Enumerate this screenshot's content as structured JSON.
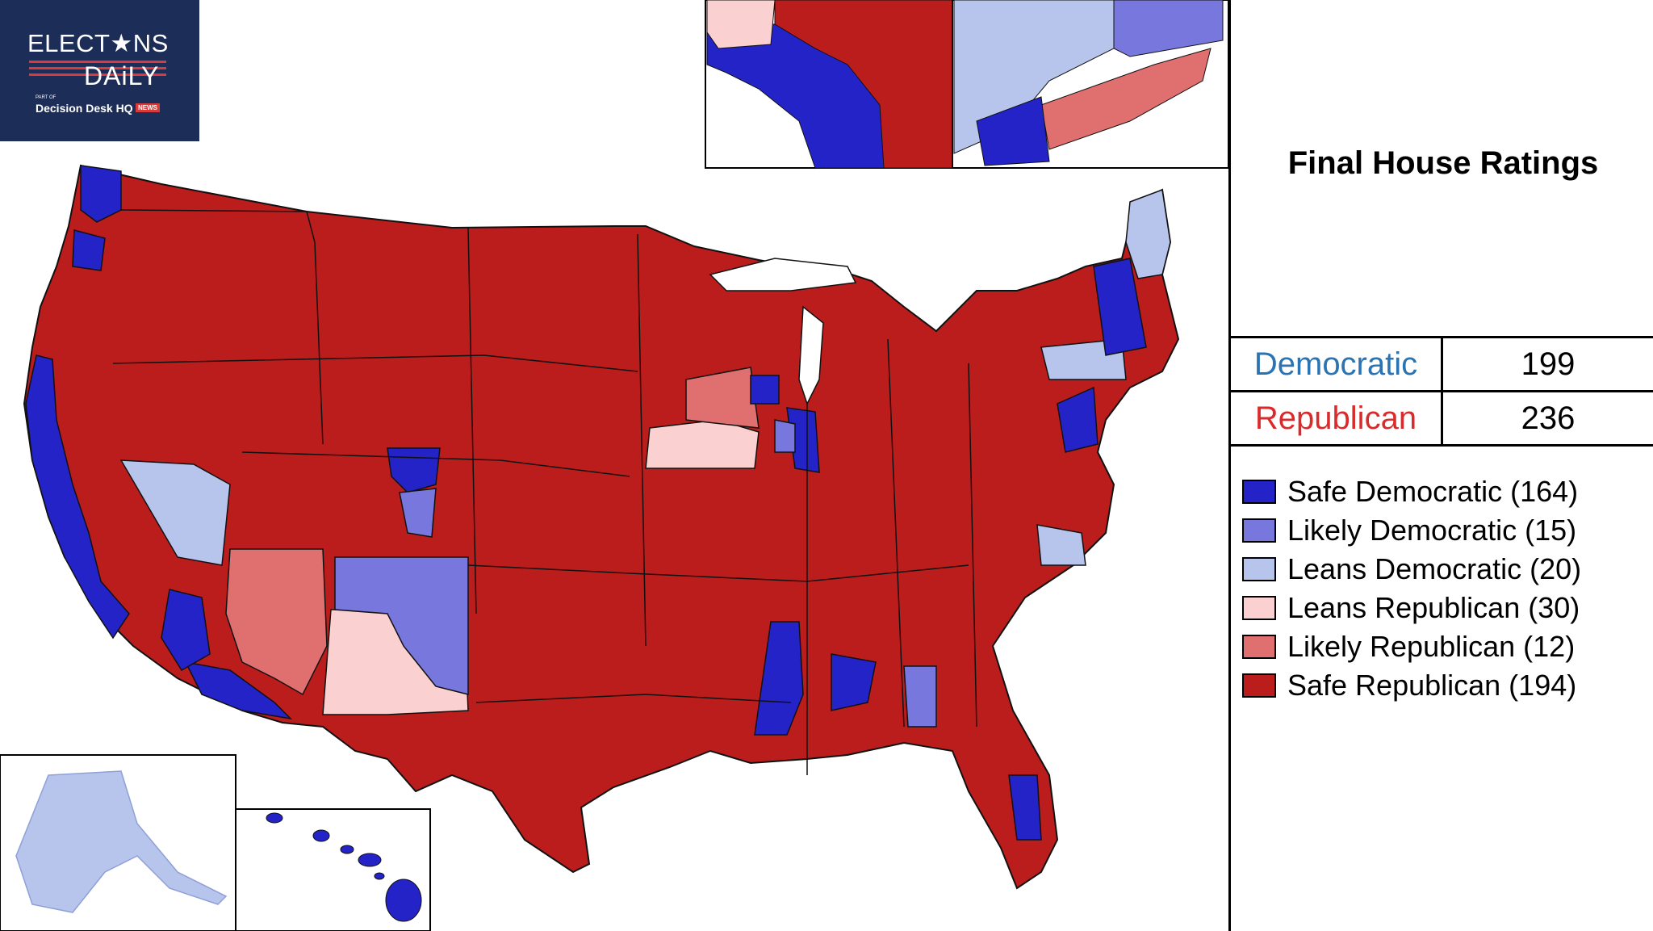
{
  "logo": {
    "line1": "ELECT★NS",
    "line2": "DAiLY",
    "sub": "PART OF",
    "brand": "Decision Desk HQ",
    "badge": "NEWS"
  },
  "title": "Final House Ratings",
  "tally": [
    {
      "party": "Democratic",
      "seats": "199",
      "color": "#2a74b4"
    },
    {
      "party": "Republican",
      "seats": "236",
      "color": "#d92b2b"
    }
  ],
  "legend": [
    {
      "label": "Safe Democratic (164)",
      "color": "#2323c8"
    },
    {
      "label": "Likely Democratic (15)",
      "color": "#7777dd"
    },
    {
      "label": "Leans Democratic (20)",
      "color": "#b7c4ec"
    },
    {
      "label": "Leans Republican (30)",
      "color": "#fbd0d0"
    },
    {
      "label": "Likely Republican (12)",
      "color": "#e07070"
    },
    {
      "label": "Safe Republican (194)",
      "color": "#bb1c1c"
    }
  ],
  "map": {
    "insets": [
      "Los Angeles area",
      "New York City area",
      "Alaska",
      "Hawaii"
    ]
  }
}
